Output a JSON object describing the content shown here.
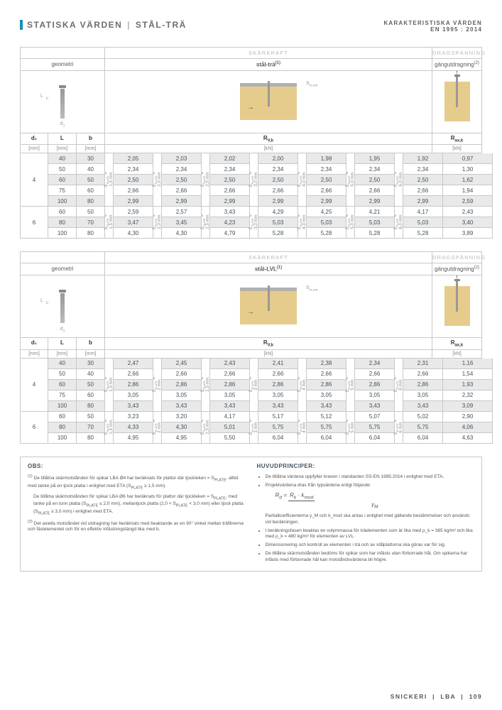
{
  "header": {
    "title_a": "STATISKA VÄRDEN",
    "title_b": "STÅL-TRÄ",
    "right1": "KARAKTERISTISKA VÄRDEN",
    "right2": "EN 1995 : 2014"
  },
  "shared": {
    "cat_shear": "SKÄRKRAFT",
    "cat_pull": "DRAGSPÄNNING",
    "geom": "geometri",
    "pull": "gängutdragning",
    "d1": "d₁",
    "L": "L",
    "b": "b",
    "mm": "[mm]",
    "Rvk": "R",
    "RvkSub": "V,k",
    "Rax": "R",
    "RaxSub": "ax,k",
    "kN": "[kN]",
    "splate_label": "S",
    "splate_after": "PLATE",
    "L_b": "L",
    "d_l": "d"
  },
  "block1": {
    "mid_label": "stål-trä",
    "pull_sup": "(2)",
    "mid_sup": "(1)",
    "groups": [
      {
        "d1": "4",
        "rows": [
          {
            "L": "40",
            "b": "30",
            "v": [
              "2,05",
              "2,03",
              "2,02",
              "2,00",
              "1,98",
              "1,95",
              "1,92"
            ],
            "ax": "0,97",
            "hi": true
          },
          {
            "L": "50",
            "b": "40",
            "v": [
              "2,34",
              "2,34",
              "2,34",
              "2,34",
              "2,34",
              "2,34",
              "2,34"
            ],
            "ax": "1,30"
          },
          {
            "L": "60",
            "b": "50",
            "v": [
              "2,50",
              "2,50",
              "2,50",
              "2,50",
              "2,50",
              "2,50",
              "2,50"
            ],
            "ax": "1,62",
            "hi": true
          },
          {
            "L": "75",
            "b": "60",
            "v": [
              "2,66",
              "2,66",
              "2,66",
              "2,66",
              "2,66",
              "2,66",
              "2,66"
            ],
            "ax": "1,94"
          },
          {
            "L": "100",
            "b": "80",
            "v": [
              "2,99",
              "2,99",
              "2,99",
              "2,99",
              "2,99",
              "2,99",
              "2,99"
            ],
            "ax": "2,59",
            "hi": true
          }
        ]
      },
      {
        "d1": "6",
        "rows": [
          {
            "L": "60",
            "b": "50",
            "v": [
              "2,59",
              "2,57",
              "3,43",
              "4,29",
              "4,25",
              "4,21",
              "4,17"
            ],
            "ax": "2,43"
          },
          {
            "L": "80",
            "b": "70",
            "v": [
              "3,47",
              "3,45",
              "4,23",
              "5,03",
              "5,03",
              "5,03",
              "5,03"
            ],
            "ax": "3,40",
            "hi": true
          },
          {
            "L": "100",
            "b": "80",
            "v": [
              "4,30",
              "4,30",
              "4,79",
              "5,28",
              "5,28",
              "5,28",
              "5,28"
            ],
            "ax": "3,89"
          }
        ]
      }
    ],
    "splate_mm": [
      "1,5 mm",
      "2,0 mm",
      "2,5 mm",
      "3,0 mm",
      "4,0 mm",
      "5,0 mm",
      "6,0 mm"
    ]
  },
  "block2": {
    "mid_label": "stål-LVL",
    "mid_sup": "(1)",
    "pull_sup": "(2)",
    "groups": [
      {
        "d1": "4",
        "rows": [
          {
            "L": "40",
            "b": "30",
            "v": [
              "2,47",
              "2,45",
              "2,43",
              "2,41",
              "2,38",
              "2,34",
              "2,31"
            ],
            "ax": "1,16",
            "hi": true
          },
          {
            "L": "50",
            "b": "40",
            "v": [
              "2,66",
              "2,66",
              "2,66",
              "2,66",
              "2,66",
              "2,66",
              "2,66"
            ],
            "ax": "1,54"
          },
          {
            "L": "60",
            "b": "50",
            "v": [
              "2,86",
              "2,86",
              "2,86",
              "2,86",
              "2,86",
              "2,86",
              "2,86"
            ],
            "ax": "1,93",
            "hi": true
          },
          {
            "L": "75",
            "b": "60",
            "v": [
              "3,05",
              "3,05",
              "3,05",
              "3,05",
              "3,05",
              "3,05",
              "3,05"
            ],
            "ax": "2,32"
          },
          {
            "L": "100",
            "b": "80",
            "v": [
              "3,43",
              "3,43",
              "3,43",
              "3,43",
              "3,43",
              "3,43",
              "3,43"
            ],
            "ax": "3,09",
            "hi": true
          }
        ]
      },
      {
        "d1": "6",
        "rows": [
          {
            "L": "60",
            "b": "50",
            "v": [
              "3,23",
              "3,20",
              "4,17",
              "5,17",
              "5,12",
              "5,07",
              "5,02"
            ],
            "ax": "2,90"
          },
          {
            "L": "80",
            "b": "70",
            "v": [
              "4,33",
              "4,30",
              "5,01",
              "5,75",
              "5,75",
              "5,75",
              "5,75"
            ],
            "ax": "4,06",
            "hi": true
          },
          {
            "L": "100",
            "b": "80",
            "v": [
              "4,95",
              "4,95",
              "5,50",
              "6,04",
              "6,04",
              "6,04",
              "6,04"
            ],
            "ax": "4,63"
          }
        ]
      }
    ],
    "splate_mm": [
      "1,5 mm",
      "2 mm",
      "2,5 mm",
      "3 mm",
      "4 mm",
      "5 mm",
      "6 mm"
    ]
  },
  "notes": {
    "obs_h": "OBS:",
    "obs1": "De tillåtna skärmotstånden för spikar LBA Ø4 har beräknats för plattor där tjockleken = S",
    "obs1b": ", alltid med tanke på en tjock platta i enlighet med ETA (S",
    "obs1c": " ≥ 1,5 mm).",
    "obs2": "De tillåtna skärmotstånden för spikar LBA Ø6 har beräknats för plattor där tjockleken = S",
    "obs2b": ", med tanke på en tunn platta (S",
    "obs2c": " ≤ 2,0 mm), mellantjock platta (2,0 < S",
    "obs2d": " < 3,0 mm) eller tjock platta (S",
    "obs2e": " ≥ 3,0 mm) i enlighet med ETA.",
    "obs3": "Det axiella motståndet vid utdragning har beräknats med beaktande av en 90° vinkel mellan träfibrerna och fästelementet och för en effektiv infästningslängd lika med b.",
    "hp_h": "HUVUDPRINCIPER:",
    "hp1": "De tillåtna värdena uppfyller kraven i standarden SS-EN 1995:2014 i enlighet med ETA.",
    "hp2": "Projektvärdena dras från typvärdena enligt följande:",
    "formula": "R_d = (R_k · k_mod) / γ_M",
    "hp2b": "Partialkoefficienterna γ_M och k_mod ska antas i enlighet med gällande bestämmelser och används vid beräkningen.",
    "hp3": "I beräkningsfasen beaktas en volymmassa för träelementen som är lika med ρ_k = 385 kg/m³ och lika med ρ_k = 480 kg/m³ för elementen av LVL.",
    "hp4": "Dimensionering och kontroll av elementen i trä och av stålplattorna ska göras var för sig.",
    "hp5": "De tillåtna skärmotstånden bedöms för spikar som har infästs utan förborrade hål. Om spikarna har infästs med förborrade hål kan motståndsvärdena bli högre."
  },
  "footer": {
    "a": "SNICKERI",
    "b": "LBA",
    "c": "109"
  },
  "colors": {
    "accent": "#1590b8",
    "wood": "#e6cc8c"
  }
}
